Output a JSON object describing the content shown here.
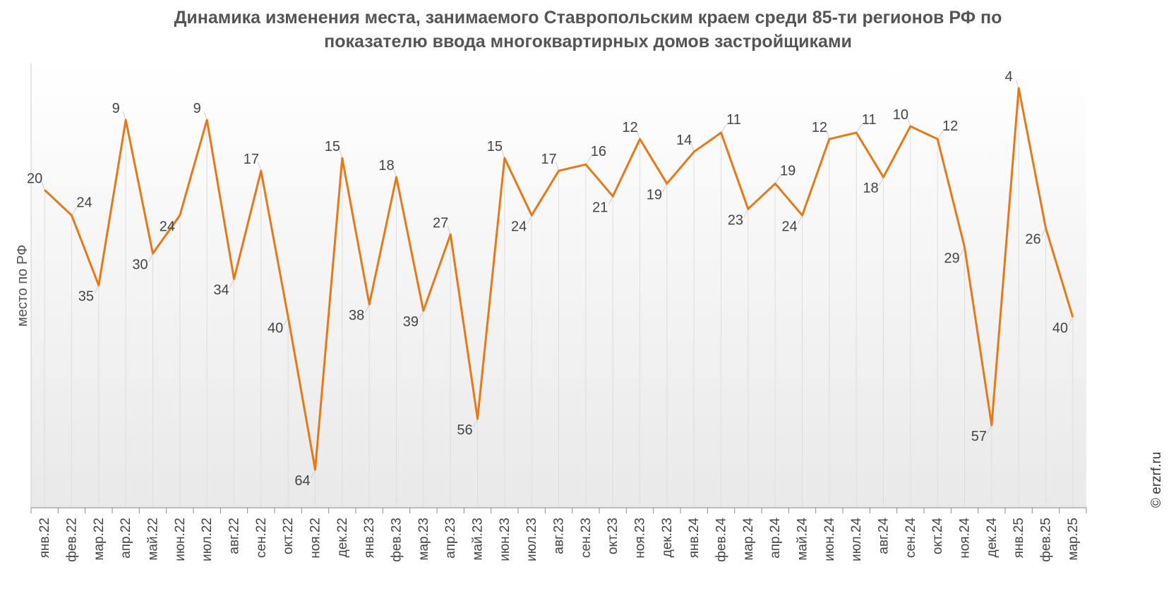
{
  "chart_data": {
    "type": "line",
    "title_line1": "Динамика изменения места, занимаемого Ставропольским краем среди 85-ти регионов РФ по",
    "title_line2": "показателю ввода многоквартирных домов застройщиками",
    "ylabel": "место по РФ",
    "xlabel": "",
    "y_inverted": true,
    "ylim": [
      1,
      70
    ],
    "grid": "vertical",
    "categories": [
      "янв.22",
      "фев.22",
      "мар.22",
      "апр.22",
      "май.22",
      "июн.22",
      "июл.22",
      "авг.22",
      "сен.22",
      "окт.22",
      "ноя.22",
      "дек.22",
      "янв.23",
      "фев.23",
      "мар.23",
      "апр.23",
      "май.23",
      "июн.23",
      "июл.23",
      "авг.23",
      "сен.23",
      "окт.23",
      "ноя.23",
      "дек.23",
      "янв.24",
      "фев.24",
      "мар.24",
      "апр.24",
      "май.24",
      "июн.24",
      "июл.24",
      "авг.24",
      "сен.24",
      "окт.24",
      "ноя.24",
      "дек.24",
      "янв.25",
      "фев.25",
      "мар.25"
    ],
    "values": [
      20,
      24,
      35,
      9,
      30,
      24,
      9,
      34,
      17,
      40,
      64,
      15,
      38,
      18,
      39,
      27,
      56,
      15,
      24,
      17,
      16,
      21,
      12,
      19,
      14,
      11,
      23,
      19,
      24,
      12,
      11,
      18,
      10,
      12,
      29,
      57,
      4,
      26,
      40
    ],
    "line_color": "#e67817",
    "label_positions": [
      "a",
      "r",
      "b",
      "a",
      "b",
      "b",
      "a",
      "b",
      "a",
      "b",
      "b",
      "a",
      "b",
      "a",
      "b",
      "a",
      "b",
      "a",
      "b",
      "a",
      "r",
      "b",
      "a",
      "b",
      "a",
      "r",
      "b",
      "r",
      "b",
      "a",
      "r",
      "b",
      "a",
      "r",
      "b",
      "b",
      "a",
      "b",
      "b"
    ]
  },
  "copyright": "© erzrf.ru"
}
